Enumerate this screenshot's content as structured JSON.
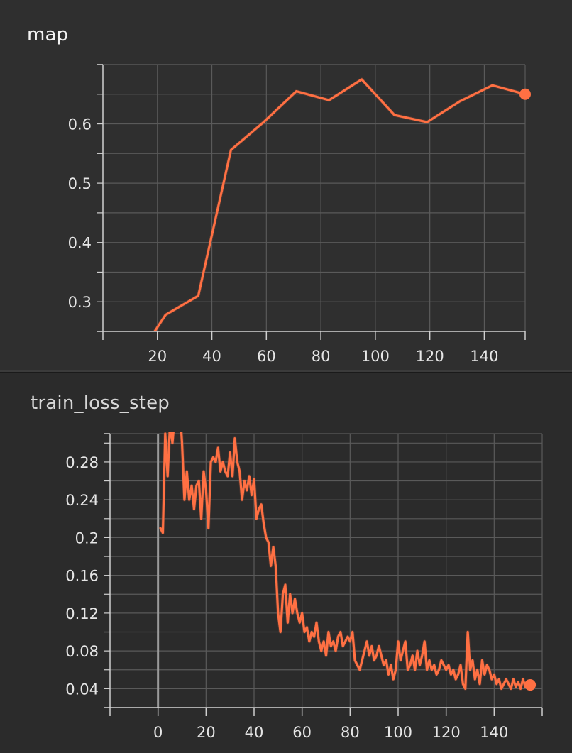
{
  "panels": [
    {
      "title": "map"
    },
    {
      "title": "train_loss_step"
    }
  ],
  "colors": {
    "series": "#ff7043",
    "grid": "#5a5a5a",
    "axis": "#d0d0d0",
    "background": "#2f2f2f"
  },
  "chart_data": [
    {
      "type": "line",
      "title": "map",
      "xlabel": "",
      "ylabel": "",
      "xlim": [
        0,
        155
      ],
      "ylim": [
        0.25,
        0.7
      ],
      "xticks": [
        20,
        40,
        60,
        80,
        100,
        120,
        140
      ],
      "xtick_labels": [
        "20",
        "40",
        "60",
        "80",
        "100",
        "120",
        "140"
      ],
      "yticks": [
        0.3,
        0.4,
        0.5,
        0.6
      ],
      "ytick_labels": [
        "0.3",
        "0.4",
        "0.5",
        "0.6"
      ],
      "grid": true,
      "series": [
        {
          "x": [
            19,
            23,
            35,
            47,
            59,
            71,
            83,
            95,
            107,
            119,
            131,
            143,
            155
          ],
          "y": [
            0.25,
            0.278,
            0.31,
            0.556,
            0.603,
            0.655,
            0.64,
            0.675,
            0.615,
            0.603,
            0.638,
            0.665,
            0.65
          ]
        }
      ]
    },
    {
      "type": "line",
      "title": "train_loss_step",
      "xlabel": "",
      "ylabel": "",
      "xlim": [
        -20,
        160
      ],
      "ylim": [
        0.02,
        0.31
      ],
      "xticks": [
        0,
        20,
        40,
        60,
        80,
        100,
        120,
        140
      ],
      "xtick_labels": [
        "0",
        "20",
        "40",
        "60",
        "80",
        "100",
        "120",
        "140"
      ],
      "yticks": [
        0.04,
        0.08,
        0.12,
        0.16,
        0.2,
        0.24,
        0.28
      ],
      "ytick_labels": [
        "0.04",
        "0.08",
        "0.12",
        "0.16",
        "0.2",
        "0.24",
        "0.28"
      ],
      "grid": true,
      "series": [
        {
          "x": [
            1,
            2,
            3,
            4,
            5,
            6,
            7,
            8,
            9,
            10,
            11,
            12,
            13,
            14,
            15,
            16,
            17,
            18,
            19,
            20,
            21,
            22,
            23,
            24,
            25,
            26,
            27,
            28,
            29,
            30,
            31,
            32,
            33,
            34,
            35,
            36,
            37,
            38,
            39,
            40,
            41,
            42,
            43,
            44,
            45,
            46,
            47,
            48,
            49,
            50,
            51,
            52,
            53,
            54,
            55,
            56,
            57,
            58,
            59,
            60,
            61,
            62,
            63,
            64,
            65,
            66,
            67,
            68,
            69,
            70,
            71,
            72,
            73,
            74,
            75,
            76,
            77,
            78,
            79,
            80,
            81,
            82,
            83,
            84,
            85,
            86,
            87,
            88,
            89,
            90,
            91,
            92,
            93,
            94,
            95,
            96,
            97,
            98,
            99,
            100,
            101,
            102,
            103,
            104,
            105,
            106,
            107,
            108,
            109,
            110,
            111,
            112,
            113,
            114,
            115,
            116,
            117,
            118,
            119,
            120,
            121,
            122,
            123,
            124,
            125,
            126,
            127,
            128,
            129,
            130,
            131,
            132,
            133,
            134,
            135,
            136,
            137,
            138,
            139,
            140,
            141,
            142,
            143,
            144,
            145,
            146,
            147,
            148,
            149,
            150,
            151,
            152,
            153,
            154,
            155
          ],
          "y": [
            0.21,
            0.205,
            0.31,
            0.265,
            0.32,
            0.3,
            0.33,
            0.32,
            0.34,
            0.3,
            0.24,
            0.27,
            0.24,
            0.255,
            0.23,
            0.255,
            0.26,
            0.22,
            0.27,
            0.25,
            0.21,
            0.28,
            0.285,
            0.28,
            0.295,
            0.27,
            0.28,
            0.27,
            0.265,
            0.29,
            0.265,
            0.305,
            0.28,
            0.27,
            0.24,
            0.26,
            0.25,
            0.265,
            0.245,
            0.262,
            0.22,
            0.23,
            0.235,
            0.215,
            0.2,
            0.195,
            0.17,
            0.19,
            0.17,
            0.12,
            0.1,
            0.14,
            0.15,
            0.11,
            0.14,
            0.12,
            0.135,
            0.12,
            0.11,
            0.12,
            0.1,
            0.105,
            0.09,
            0.1,
            0.095,
            0.11,
            0.09,
            0.08,
            0.09,
            0.075,
            0.1,
            0.085,
            0.09,
            0.08,
            0.095,
            0.1,
            0.085,
            0.09,
            0.095,
            0.09,
            0.1,
            0.07,
            0.065,
            0.06,
            0.07,
            0.08,
            0.09,
            0.075,
            0.085,
            0.07,
            0.075,
            0.085,
            0.075,
            0.065,
            0.07,
            0.055,
            0.065,
            0.05,
            0.06,
            0.09,
            0.07,
            0.08,
            0.09,
            0.06,
            0.065,
            0.075,
            0.06,
            0.08,
            0.065,
            0.075,
            0.09,
            0.06,
            0.07,
            0.06,
            0.065,
            0.055,
            0.06,
            0.07,
            0.065,
            0.06,
            0.065,
            0.055,
            0.06,
            0.05,
            0.055,
            0.065,
            0.045,
            0.04,
            0.1,
            0.06,
            0.07,
            0.05,
            0.06,
            0.045,
            0.07,
            0.055,
            0.065,
            0.06,
            0.05,
            0.055,
            0.045,
            0.05,
            0.04,
            0.045,
            0.05,
            0.045,
            0.04,
            0.05,
            0.042,
            0.047,
            0.04,
            0.05,
            0.042,
            0.048,
            0.044
          ]
        }
      ]
    }
  ]
}
